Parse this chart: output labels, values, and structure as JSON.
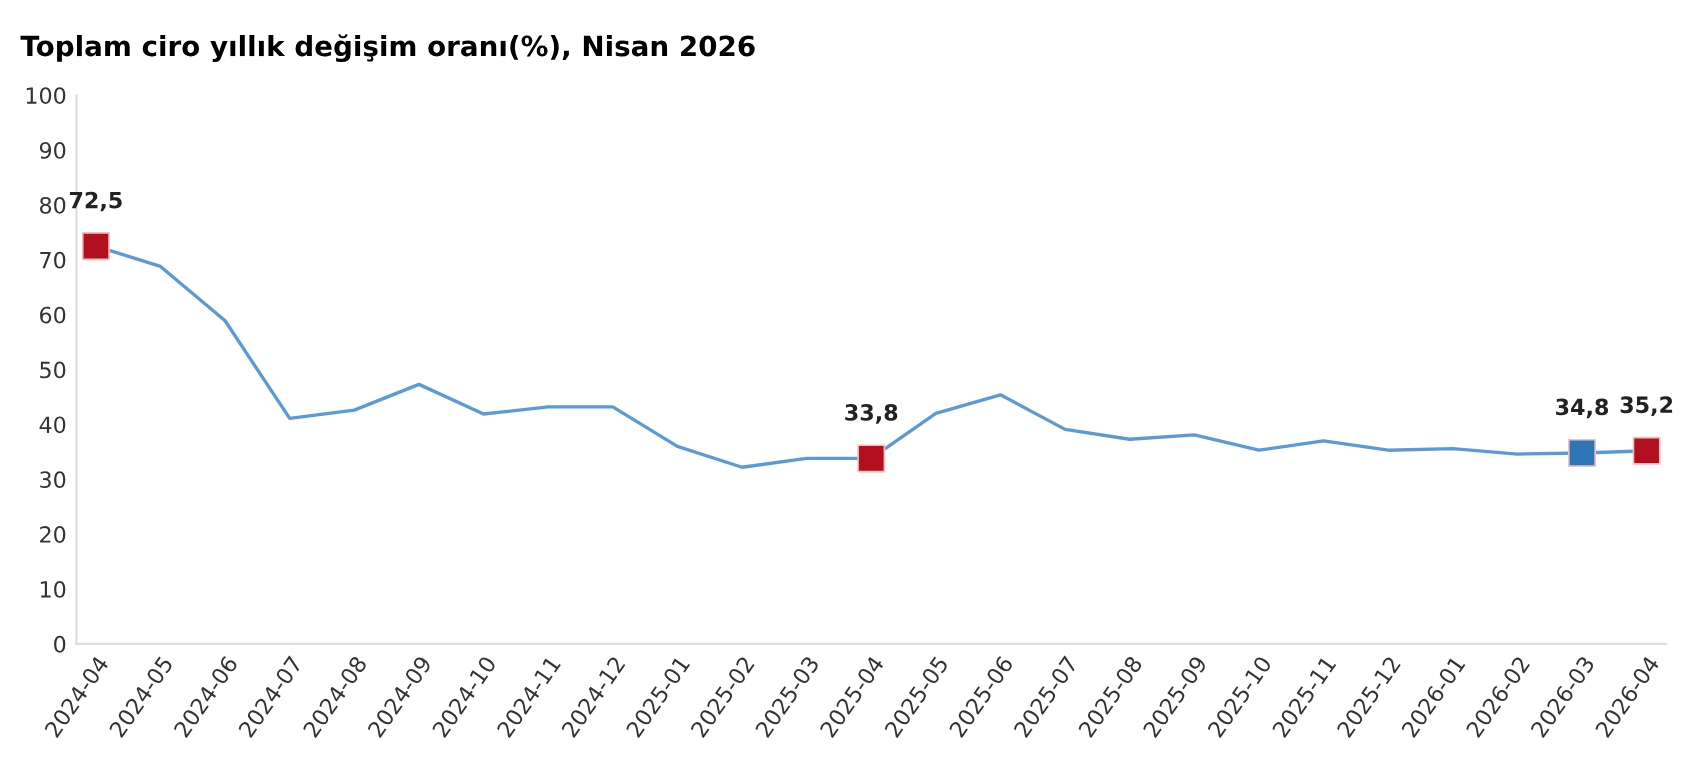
{
  "chart_data": {
    "type": "line",
    "title": "Toplam ciro yıllık değişim oranı(%), Nisan 2026",
    "categories": [
      "2024-04",
      "2024-05",
      "2024-06",
      "2024-07",
      "2024-08",
      "2024-09",
      "2024-10",
      "2024-11",
      "2024-12",
      "2025-01",
      "2025-02",
      "2025-03",
      "2025-04",
      "2025-05",
      "2025-06",
      "2025-07",
      "2025-08",
      "2025-09",
      "2025-10",
      "2025-11",
      "2025-12",
      "2026-01",
      "2026-02",
      "2026-03",
      "2026-04"
    ],
    "series": [
      {
        "color": "#5b9bd5",
        "marker": "none",
        "values": [
          72.5,
          68.8,
          58.9,
          41.1,
          42.6,
          47.3,
          41.9,
          43.2,
          43.2,
          36.0,
          32.2,
          33.8,
          33.8,
          42.0,
          45.4,
          39.1,
          37.3,
          38.1,
          35.3,
          37.0,
          35.3,
          35.6,
          34.6,
          34.8,
          35.2
        ]
      },
      {
        "type": "scatter",
        "color": "#b2101e",
        "marker": "square",
        "values": [
          72.5,
          null,
          null,
          null,
          null,
          null,
          null,
          null,
          null,
          null,
          null,
          null,
          33.8,
          null,
          null,
          null,
          null,
          null,
          null,
          null,
          null,
          null,
          null,
          null,
          35.2
        ],
        "value_labels": [
          "72,5",
          null,
          null,
          null,
          null,
          null,
          null,
          null,
          null,
          null,
          null,
          null,
          "33,8",
          null,
          null,
          null,
          null,
          null,
          null,
          null,
          null,
          null,
          null,
          null,
          "35,2"
        ]
      },
      {
        "type": "scatter",
        "color": "#2e75b6",
        "marker": "square",
        "values": [
          null,
          null,
          null,
          null,
          null,
          null,
          null,
          null,
          null,
          null,
          null,
          null,
          null,
          null,
          null,
          null,
          null,
          null,
          null,
          null,
          null,
          null,
          null,
          34.8,
          null
        ],
        "value_labels": [
          null,
          null,
          null,
          null,
          null,
          null,
          null,
          null,
          null,
          null,
          null,
          null,
          null,
          null,
          null,
          null,
          null,
          null,
          null,
          null,
          null,
          null,
          null,
          "34,8",
          null
        ]
      }
    ],
    "ylim": [
      0,
      100
    ],
    "yticks": [
      0,
      10,
      20,
      30,
      40,
      50,
      60,
      70,
      80,
      90,
      100
    ],
    "grid": false,
    "legend": false
  }
}
